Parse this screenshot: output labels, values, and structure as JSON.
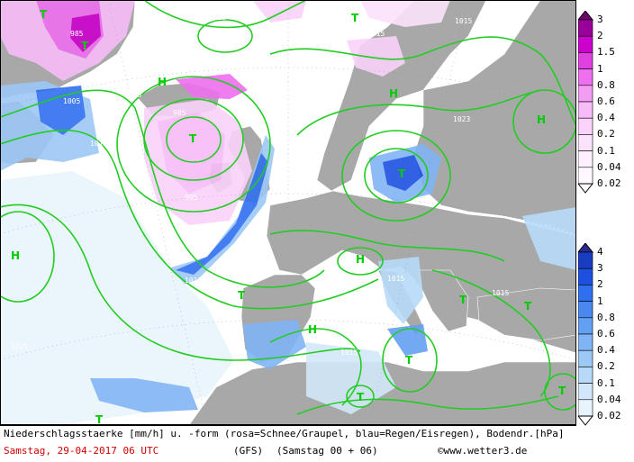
{
  "footer": {
    "description": "Niederschlagsstaerke [mm/h] u. -form (rosa=Schnee/Graupel, blau=Regen/Eisregen), Bodendr.[hPa]",
    "date": "Samstag, 29-04-2017  06 UTC",
    "model": "(GFS)",
    "run": "(Samstag 00 + 06)",
    "credit": "www.wetter3.de"
  },
  "snow_scale": {
    "labels": [
      "3",
      "2",
      "1.5",
      "1",
      "0.8",
      "0.6",
      "0.4",
      "0.2",
      "0.1",
      "0.04",
      "0.02"
    ],
    "colors": [
      "#6e0070",
      "#990099",
      "#cc00cc",
      "#e040e0",
      "#ee70ee",
      "#f39cf3",
      "#f7bcf7",
      "#fad2fa",
      "#fce3fc",
      "#fef0fe",
      "#fff8ff"
    ]
  },
  "rain_scale": {
    "labels": [
      "4",
      "3",
      "2",
      "1",
      "0.8",
      "0.6",
      "0.4",
      "0.2",
      "0.1",
      "0.04",
      "0.02"
    ],
    "colors": [
      "#2a2a90",
      "#1a3cc0",
      "#1e50e0",
      "#3070f0",
      "#4a88f0",
      "#64a0f2",
      "#80b4f4",
      "#9cc8f6",
      "#b8daf8",
      "#d2e8fa",
      "#e8f4fc"
    ]
  },
  "pressure_labels": [
    "985",
    "1025",
    "1015",
    "1005",
    "1025",
    "1015",
    "985",
    "995",
    "1015",
    "1023",
    "1025",
    "1015",
    "1005",
    "1025",
    "1015",
    "1015",
    "1015",
    "1015"
  ],
  "pressure_centers": [
    "T",
    "T",
    "H",
    "H",
    "H",
    "T",
    "T",
    "H",
    "T",
    "H",
    "T",
    "T",
    "T",
    "H",
    "T",
    "T",
    "T",
    "T"
  ]
}
